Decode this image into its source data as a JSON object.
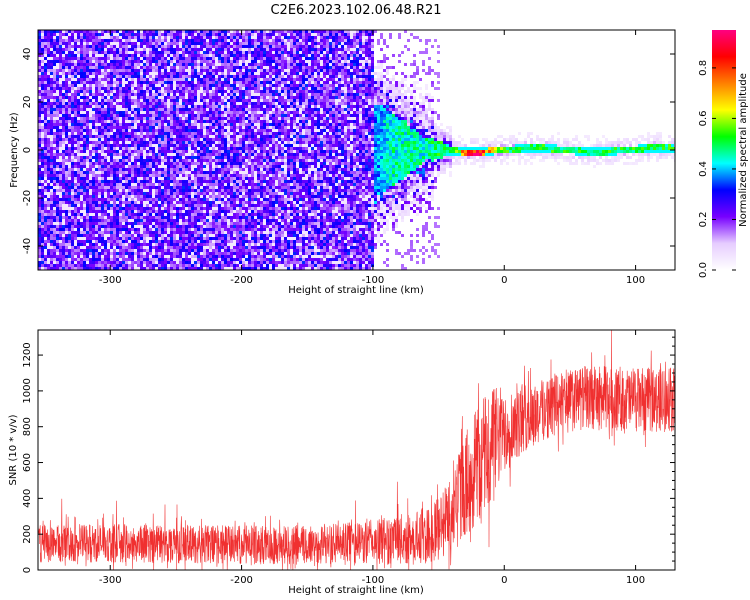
{
  "title": "C2E6.2023.102.06.48.R21",
  "chart_data": [
    {
      "type": "heatmap",
      "xlabel": "Height of straight line (km)",
      "ylabel": "Frequency (Hz)",
      "xlim": [
        -355,
        130
      ],
      "ylim": [
        -50,
        50
      ],
      "x_ticks": [
        -300,
        -200,
        -100,
        0,
        100
      ],
      "y_ticks": [
        -40,
        -20,
        0,
        20,
        40
      ],
      "colorbar": {
        "label": "Normalized spectral amplitude",
        "range": [
          0,
          0.95
        ],
        "ticks": [
          "0.0",
          "0.2",
          "0.4",
          "0.6",
          "0.8"
        ],
        "colors": [
          "#ffffff",
          "#e6ccff",
          "#7700ff",
          "#0000ff",
          "#00ffff",
          "#00ff00",
          "#ffff00",
          "#ff8000",
          "#ff0000",
          "#ff0080"
        ]
      },
      "profile": [
        {
          "x": -355,
          "amplitude": 0.3,
          "freq_spread_hz": 50
        },
        {
          "x": -110,
          "amplitude": 0.3,
          "freq_spread_hz": 50
        },
        {
          "x": -100,
          "amplitude": 0.35,
          "freq_spread_hz": 40
        },
        {
          "x": -85,
          "amplitude": 0.45,
          "freq_spread_hz": 30
        },
        {
          "x": -60,
          "amplitude": 0.45,
          "freq_spread_hz": 10
        },
        {
          "x": -40,
          "amplitude": 0.55,
          "freq_spread_hz": 4
        },
        {
          "x": -20,
          "amplitude": 0.9,
          "freq_spread_hz": 3
        },
        {
          "x": 0,
          "amplitude": 0.5,
          "freq_spread_hz": 3
        },
        {
          "x": 130,
          "amplitude": 0.5,
          "freq_spread_hz": 3
        }
      ]
    },
    {
      "type": "line",
      "xlabel": "Height of straight line (km)",
      "ylabel": "SNR (10 * v/v)",
      "xlim": [
        -355,
        130
      ],
      "ylim": [
        0,
        1340
      ],
      "x_ticks": [
        -300,
        -200,
        -100,
        0,
        100
      ],
      "y_ticks": [
        0,
        200,
        400,
        600,
        800,
        1000,
        1200
      ],
      "color": "#f03030",
      "series": [
        {
          "x": [
            -355,
            -300,
            -250,
            -200,
            -150,
            -110,
            -80,
            -60,
            -50,
            -40,
            -30,
            -20,
            -10,
            0,
            20,
            40,
            60,
            80,
            100,
            130
          ],
          "y_mean": [
            150,
            150,
            145,
            140,
            140,
            150,
            170,
            180,
            230,
            330,
            470,
            600,
            690,
            780,
            860,
            930,
            960,
            960,
            950,
            950
          ],
          "y_spread": [
            120,
            120,
            120,
            120,
            120,
            130,
            160,
            170,
            200,
            250,
            320,
            380,
            400,
            260,
            200,
            200,
            200,
            200,
            200,
            200
          ]
        }
      ]
    }
  ]
}
